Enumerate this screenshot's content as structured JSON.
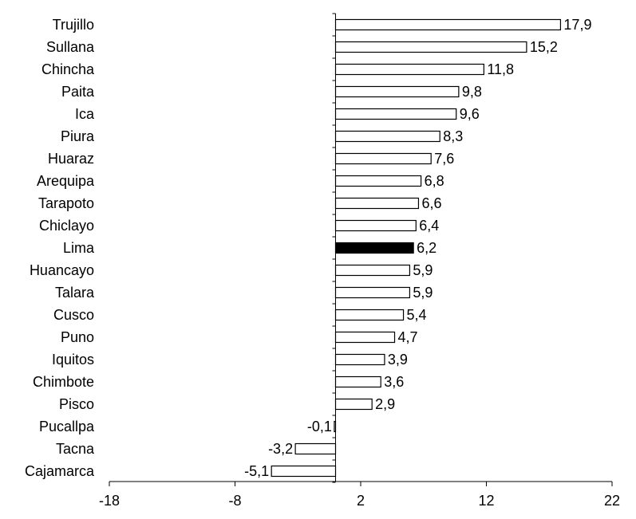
{
  "chart_data": {
    "type": "bar",
    "orientation": "horizontal",
    "categories": [
      "Trujillo",
      "Sullana",
      "Chincha",
      "Paita",
      "Ica",
      "Piura",
      "Huaraz",
      "Arequipa",
      "Tarapoto",
      "Chiclayo",
      "Lima",
      "Huancayo",
      "Talara",
      "Cusco",
      "Puno",
      "Iquitos",
      "Chimbote",
      "Pisco",
      "Pucallpa",
      "Tacna",
      "Cajamarca"
    ],
    "values": [
      17.9,
      15.2,
      11.8,
      9.8,
      9.6,
      8.3,
      7.6,
      6.8,
      6.6,
      6.4,
      6.2,
      5.9,
      5.9,
      5.4,
      4.7,
      3.9,
      3.6,
      2.9,
      -0.1,
      -3.2,
      -5.1
    ],
    "value_labels": [
      "17,9",
      "15,2",
      "11,8",
      "9,8",
      "9,6",
      "8,3",
      "7,6",
      "6,8",
      "6,6",
      "6,4",
      "6,2",
      "5,9",
      "5,9",
      "5,4",
      "4,7",
      "3,9",
      "3,6",
      "2,9",
      "-0,1",
      "-3,2",
      "-5,1"
    ],
    "highlight": "Lima",
    "xlim": [
      -18,
      22
    ],
    "xticks": [
      -18,
      -8,
      2,
      12,
      22
    ],
    "xtick_labels": [
      "-18",
      "-8",
      "2",
      "12",
      "22"
    ],
    "title": "",
    "xlabel": "",
    "ylabel": "",
    "grid": false,
    "colors": {
      "bar_fill": "#ffffff",
      "highlight_fill": "#000000",
      "stroke": "#000000"
    }
  }
}
